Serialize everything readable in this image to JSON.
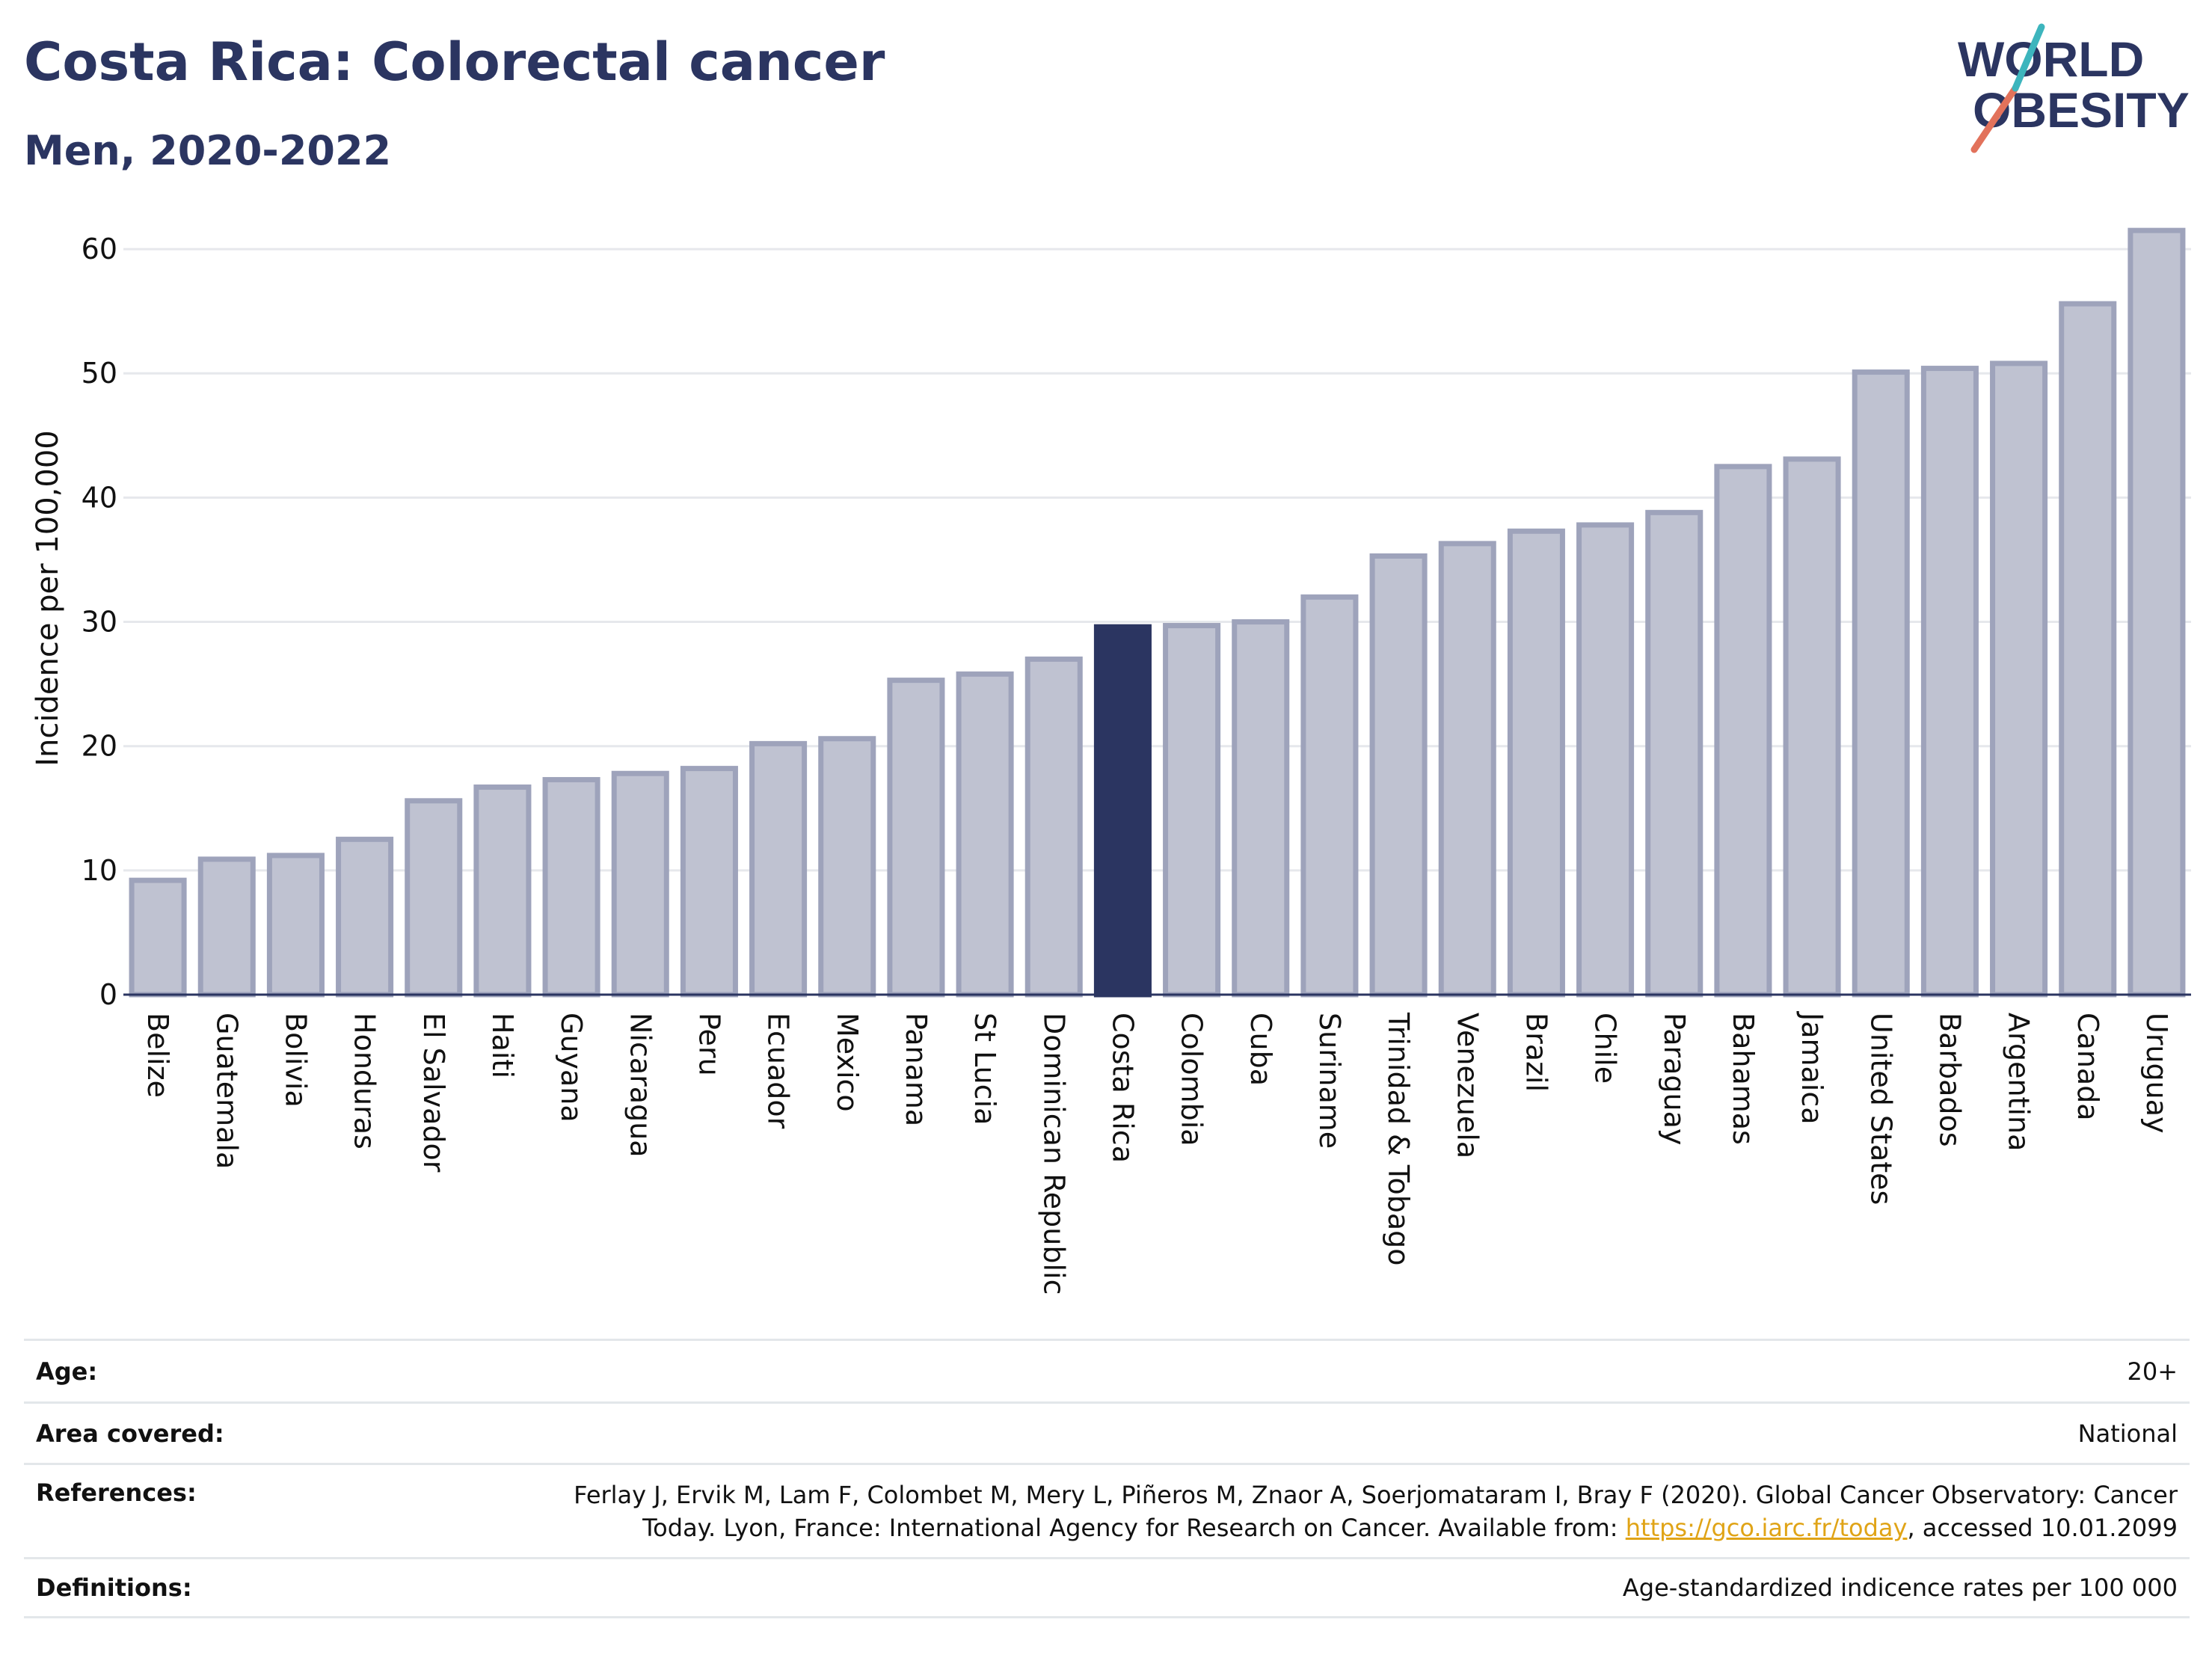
{
  "page": {
    "title": "Costa Rica: Colorectal cancer",
    "subtitle": "Men, 2020-2022"
  },
  "logo": {
    "line1": "WORLD",
    "line2": "OBESITY"
  },
  "colors": {
    "highlight": "#2b3561",
    "bar_fill": "#bfc2d1",
    "bar_stroke": "#9ea3bb",
    "grid": "#e6e8ec",
    "title": "#2b3561",
    "link": "#e0a417"
  },
  "chart_data": {
    "type": "bar",
    "ylabel": "Incidence per 100,000",
    "ylim": [
      0,
      65
    ],
    "yticks": [
      0,
      10,
      20,
      30,
      40,
      50,
      60
    ],
    "grid": true,
    "highlight": "Costa Rica",
    "categories": [
      "Belize",
      "Guatemala",
      "Bolivia",
      "Honduras",
      "El Salvador",
      "Haiti",
      "Guyana",
      "Nicaragua",
      "Peru",
      "Ecuador",
      "Mexico",
      "Panama",
      "St Lucia",
      "Dominican Republic",
      "Costa Rica",
      "Colombia",
      "Cuba",
      "Suriname",
      "Trinidad & Tobago",
      "Venezuela",
      "Brazil",
      "Chile",
      "Paraguay",
      "Bahamas",
      "Jamaica",
      "United States",
      "Barbados",
      "Argentina",
      "Canada",
      "Uruguay"
    ],
    "values": [
      9.2,
      10.9,
      11.2,
      12.5,
      15.6,
      16.7,
      17.3,
      17.8,
      18.2,
      20.2,
      20.6,
      25.3,
      25.8,
      27.0,
      29.6,
      29.7,
      30.0,
      32.0,
      35.3,
      36.3,
      37.3,
      37.8,
      38.8,
      42.5,
      43.1,
      50.1,
      50.4,
      50.8,
      55.6,
      61.5
    ]
  },
  "info": [
    {
      "label": "Age:",
      "value": "20+"
    },
    {
      "label": "Area covered:",
      "value": "National"
    },
    {
      "label": "References:",
      "value_line1": "Ferlay J, Ervik M, Lam F, Colombet M, Mery L, Piñeros M, Znaor A, Soerjomataram I, Bray F (2020). Global Cancer Observatory: Cancer",
      "value_line2_pre": "Today. Lyon, France: International Agency for Research on Cancer. Available from: ",
      "link": "https://gco.iarc.fr/today",
      "value_line2_post": ", accessed 10.01.2099"
    },
    {
      "label": "Definitions:",
      "value": "Age-standardized indicence rates per 100 000"
    }
  ]
}
